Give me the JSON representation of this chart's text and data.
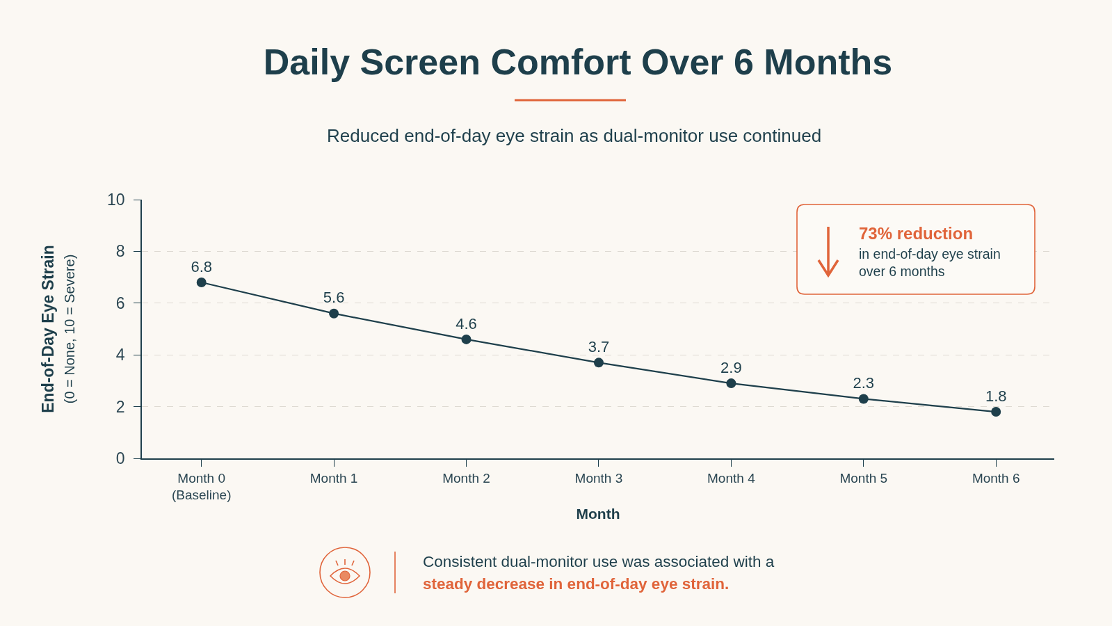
{
  "chart_data": {
    "type": "line",
    "title": "Daily Screen Comfort Over 6 Months",
    "subtitle": "Reduced end-of-day eye strain as dual-monitor use continued",
    "xlabel": "Month",
    "ylabel": "End-of-Day Eye Strain\n(0 = None, 10 = Severe)",
    "categories": [
      "Month 0\n(Baseline)",
      "Month 1",
      "Month 2",
      "Month 3",
      "Month 4",
      "Month 5",
      "Month 6"
    ],
    "values": [
      6.8,
      5.6,
      4.6,
      3.7,
      2.9,
      2.3,
      1.8
    ],
    "color": "#1e3f4b",
    "ylim": [
      0,
      10
    ],
    "yticks": [
      0,
      2,
      4,
      6,
      8,
      10
    ],
    "grid": "y",
    "marker": "circle",
    "line_style": "solid",
    "data_labels": true,
    "annotations": [
      "73% reduction",
      "in end-of-day eye strain\nover 6 months",
      "Consistent dual-monitor use was associated with a",
      "steady decrease in end-of-day eye strain."
    ]
  }
}
